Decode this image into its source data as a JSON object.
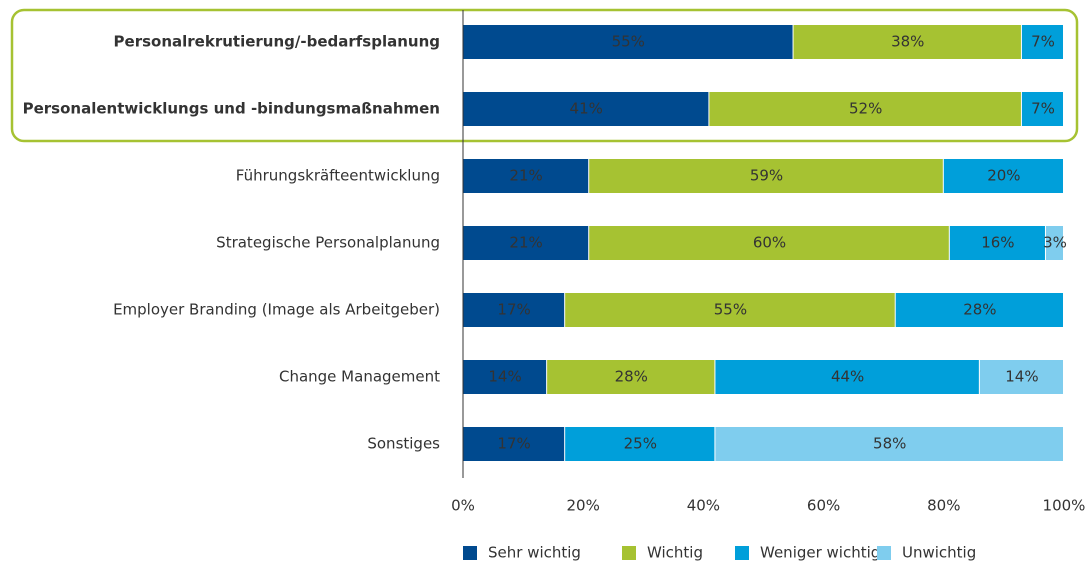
{
  "chart_data": {
    "type": "stacked_barh",
    "categories": [
      "Personalrekrutierung/-bedarfsplanung",
      "Personalentwicklungs und -bindungsmaßnahmen",
      "Führungskräfteentwicklung",
      "Strategische Personalplanung",
      "Employer Branding (Image als Arbeitgeber)",
      "Change Management",
      "Sonstiges"
    ],
    "highlight_rows": [
      0,
      1
    ],
    "highlight_color": "#a6c232",
    "series": [
      {
        "name": "Sehr wichtig",
        "color": "#004a8f",
        "values": [
          55,
          41,
          21,
          21,
          17,
          14,
          17
        ],
        "value_labels": [
          "55%",
          "41%",
          "21%",
          "21%",
          "17%",
          "14%",
          "17%"
        ]
      },
      {
        "name": "Wichtig",
        "color": "#a6c232",
        "values": [
          38,
          52,
          59,
          60,
          55,
          28,
          null
        ],
        "value_labels": [
          "38%",
          "52%",
          "59%",
          "60%",
          "55%",
          "28%",
          null
        ]
      },
      {
        "name": "Weniger wichtig",
        "color": "#009fda",
        "values": [
          7,
          7,
          20,
          16,
          28,
          44,
          25
        ],
        "value_labels": [
          "7%",
          "7%",
          "20%",
          "16%",
          "28%",
          "44%",
          "25%"
        ]
      },
      {
        "name": "Unwichtig",
        "color": "#7fcdee",
        "values": [
          null,
          null,
          null,
          3,
          null,
          14,
          58
        ],
        "value_labels": [
          null,
          null,
          null,
          "3%",
          null,
          "14%",
          "58%"
        ]
      }
    ],
    "xlim": [
      0,
      100
    ],
    "xticks": [
      {
        "value": 0,
        "label": "0%"
      },
      {
        "value": 20,
        "label": "20%"
      },
      {
        "value": 40,
        "label": "40%"
      },
      {
        "value": 60,
        "label": "60%"
      },
      {
        "value": 80,
        "label": "80%"
      },
      {
        "value": 100,
        "label": "100%"
      }
    ]
  }
}
